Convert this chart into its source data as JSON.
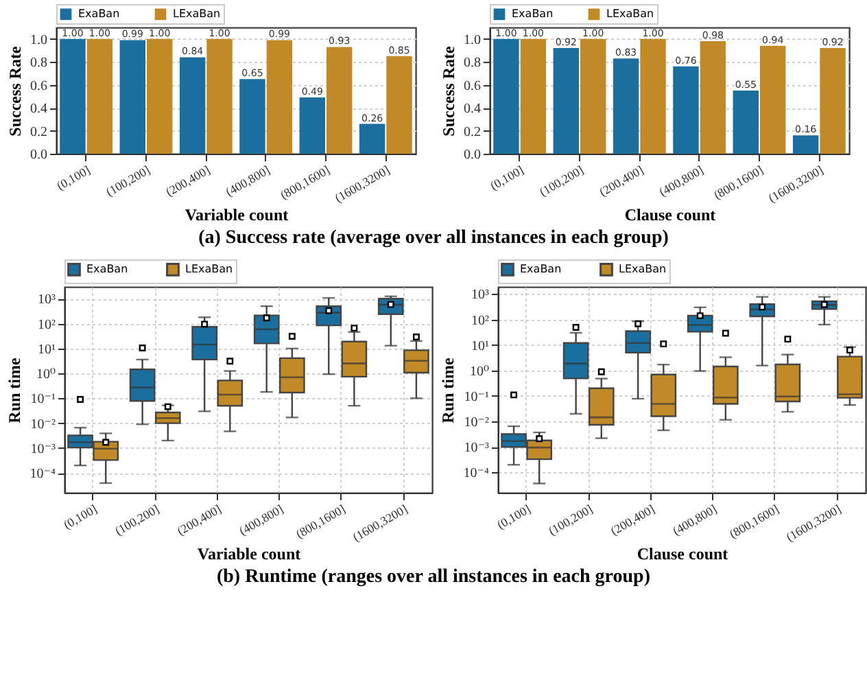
{
  "chart_data": [
    {
      "type": "bar",
      "xlabel": "Variable count",
      "ylabel": "Success Rate",
      "categories": [
        "(0,100]",
        "(100,200]",
        "(200,400]",
        "(400,800]",
        "(800,1600]",
        "(1600,3200]"
      ],
      "series": [
        {
          "name": "ExaBan",
          "color": "#1b6f9f",
          "values": [
            1.0,
            0.99,
            0.84,
            0.65,
            0.49,
            0.26
          ],
          "value_labels": [
            "1.00",
            "0.99",
            "0.84",
            "0.65",
            "0.49",
            "0.26"
          ]
        },
        {
          "name": "LExaBan",
          "color": "#c28a26",
          "values": [
            1.0,
            1.0,
            1.0,
            0.99,
            0.93,
            0.85
          ],
          "value_labels": [
            "1.00",
            "1.00",
            "1.00",
            "0.99",
            "0.93",
            "0.85"
          ]
        }
      ],
      "ylim": [
        0,
        1.1
      ],
      "yticks": [
        {
          "value": 0,
          "label": "0.0"
        },
        0.2,
        0.4,
        0.6,
        0.8,
        {
          "value": 1,
          "label": "1.0"
        }
      ],
      "grid": "y",
      "legend": "top",
      "annotations": [
        "(a) Success rate (average over all instances in each group)"
      ]
    },
    {
      "type": "bar",
      "xlabel": "Clause count",
      "ylabel": "Success Rate",
      "categories": [
        "(0,100]",
        "(100,200]",
        "(200,400]",
        "(400,800]",
        "(800,1600]",
        "(1600,3200]"
      ],
      "series": [
        {
          "name": "ExaBan",
          "color": "#1b6f9f",
          "values": [
            1.0,
            0.92,
            0.83,
            0.76,
            0.55,
            0.16
          ],
          "value_labels": [
            "1.00",
            "0.92",
            "0.83",
            "0.76",
            "0.55",
            "0.16"
          ]
        },
        {
          "name": "LExaBan",
          "color": "#c28a26",
          "values": [
            1.0,
            1.0,
            1.0,
            0.98,
            0.94,
            0.92
          ],
          "value_labels": [
            "1.00",
            "1.00",
            "1.00",
            "0.98",
            "0.94",
            "0.92"
          ]
        }
      ],
      "ylim": [
        0,
        1.1
      ],
      "yticks": [
        {
          "value": 0,
          "label": "0.0"
        },
        0.2,
        0.4,
        0.6,
        0.8,
        {
          "value": 1,
          "label": "1.0"
        }
      ],
      "grid": "y",
      "legend": "top"
    },
    {
      "type": "box",
      "xlabel": "Variable count",
      "ylabel": "Run time",
      "categories": [
        "(0,100]",
        "(100,200]",
        "(200,400]",
        "(400,800]",
        "(800,1600]",
        "(1600,3200]"
      ],
      "series": [
        {
          "name": "ExaBan",
          "color": "#1b6f9f",
          "boxes": [
            {
              "low": 0.0002,
              "q1": 0.00105,
              "median": 0.0017,
              "q3": 0.0032,
              "high": 0.0066,
              "mean": 0.09
            },
            {
              "low": 0.009,
              "q1": 0.078,
              "median": 0.27,
              "q3": 1.45,
              "high": 3.6,
              "mean": 10.5
            },
            {
              "low": 0.03,
              "q1": 3.6,
              "median": 14.5,
              "q3": 74,
              "high": 180,
              "mean": 95
            },
            {
              "low": 0.18,
              "q1": 16,
              "median": 59,
              "q3": 213,
              "high": 500,
              "mean": 170
            },
            {
              "low": 0.93,
              "q1": 85,
              "median": 275,
              "q3": 500,
              "high": 1080,
              "mean": 330
            },
            {
              "low": 13,
              "q1": 240,
              "median": 570,
              "q3": 1000,
              "high": 1250,
              "mean": 590
            }
          ]
        },
        {
          "name": "LExaBan",
          "color": "#c28a26",
          "boxes": [
            {
              "low": 3.9e-05,
              "q1": 0.00033,
              "median": 0.00095,
              "q3": 0.0018,
              "high": 0.0039,
              "mean": 0.0017
            },
            {
              "low": 0.002,
              "q1": 0.01,
              "median": 0.016,
              "q3": 0.027,
              "high": 0.052,
              "mean": 0.046
            },
            {
              "low": 0.0047,
              "q1": 0.05,
              "median": 0.14,
              "q3": 0.52,
              "high": 1.25,
              "mean": 3.1
            },
            {
              "low": 0.017,
              "q1": 0.17,
              "median": 0.7,
              "q3": 4.1,
              "high": 10,
              "mean": 31
            },
            {
              "low": 0.05,
              "q1": 0.74,
              "median": 2.5,
              "q3": 19,
              "high": 46,
              "mean": 66
            },
            {
              "low": 0.1,
              "q1": 1.07,
              "median": 3.2,
              "q3": 8.5,
              "high": 20,
              "mean": 29
            }
          ]
        }
      ],
      "log": "y",
      "ylim": [
        1.6e-05,
        3000
      ],
      "yticks": [
        {
          "value": 0.0001,
          "label": "10⁻⁴"
        },
        {
          "value": 0.001,
          "label": "10⁻³"
        },
        {
          "value": 0.01,
          "label": "10⁻²"
        },
        {
          "value": 0.1,
          "label": "10⁻¹"
        },
        {
          "value": 1,
          "label": "10⁰"
        },
        {
          "value": 10,
          "label": "10¹"
        },
        {
          "value": 100,
          "label": "10²"
        },
        {
          "value": 1000,
          "label": "10³"
        }
      ],
      "grid": true,
      "legend": "top",
      "annotations": [
        "(b) Runtime (ranges over all instances in each group)"
      ]
    },
    {
      "type": "box",
      "xlabel": "Clause count",
      "ylabel": "Run time",
      "categories": [
        "(0,100]",
        "(100,200]",
        "(200,400]",
        "(400,800]",
        "(800,1600]",
        "(1600,3200]"
      ],
      "series": [
        {
          "name": "ExaBan",
          "color": "#1b6f9f",
          "boxes": [
            {
              "low": 0.0002,
              "q1": 0.001,
              "median": 0.0017,
              "q3": 0.0032,
              "high": 0.0065,
              "mean": 0.11
            },
            {
              "low": 0.02,
              "q1": 0.49,
              "median": 1.85,
              "q3": 12,
              "high": 30,
              "mean": 49
            },
            {
              "low": 0.078,
              "q1": 5,
              "median": 12,
              "q3": 35,
              "high": 85,
              "mean": 68
            },
            {
              "low": 0.95,
              "q1": 33,
              "median": 61,
              "q3": 142,
              "high": 300,
              "mean": 140
            },
            {
              "low": 1.56,
              "q1": 132,
              "median": 246,
              "q3": 400,
              "high": 770,
              "mean": 307
            },
            {
              "low": 63,
              "q1": 256,
              "median": 370,
              "q3": 515,
              "high": 770,
              "mean": 385
            }
          ]
        },
        {
          "name": "LExaBan",
          "color": "#c28a26",
          "boxes": [
            {
              "low": 3.7e-05,
              "q1": 0.00033,
              "median": 0.00095,
              "q3": 0.0018,
              "high": 0.0037,
              "mean": 0.0021
            },
            {
              "low": 0.0022,
              "q1": 0.0074,
              "median": 0.0145,
              "q3": 0.2,
              "high": 0.48,
              "mean": 0.89
            },
            {
              "low": 0.0045,
              "q1": 0.016,
              "median": 0.049,
              "q3": 0.69,
              "high": 1.7,
              "mean": 11
            },
            {
              "low": 0.0116,
              "q1": 0.049,
              "median": 0.087,
              "q3": 1.43,
              "high": 3.3,
              "mean": 29
            },
            {
              "low": 0.024,
              "q1": 0.061,
              "median": 0.095,
              "q3": 1.73,
              "high": 4.2,
              "mean": 17
            },
            {
              "low": 0.044,
              "q1": 0.085,
              "median": 0.117,
              "q3": 3.5,
              "high": 8.3,
              "mean": 6.3
            }
          ]
        }
      ],
      "log": "y",
      "ylim": [
        1.6e-05,
        1900
      ],
      "yticks": [
        {
          "value": 0.0001,
          "label": "10⁻⁴"
        },
        {
          "value": 0.001,
          "label": "10⁻³"
        },
        {
          "value": 0.01,
          "label": "10⁻²"
        },
        {
          "value": 0.1,
          "label": "10⁻¹"
        },
        {
          "value": 1,
          "label": "10⁰"
        },
        {
          "value": 10,
          "label": "10¹"
        },
        {
          "value": 100,
          "label": "10²"
        },
        {
          "value": 1000,
          "label": "10³"
        }
      ],
      "grid": true,
      "legend": "top"
    }
  ]
}
